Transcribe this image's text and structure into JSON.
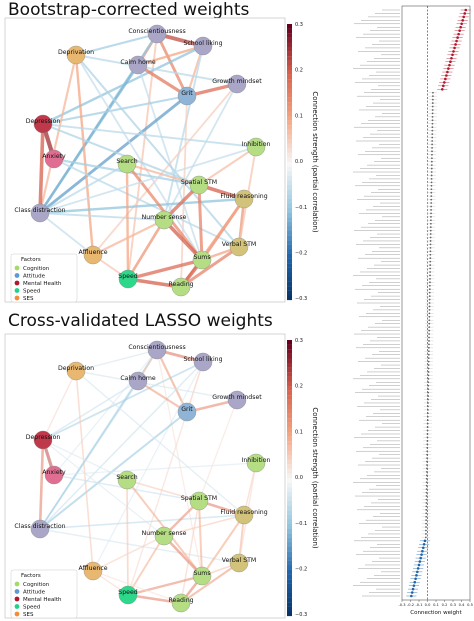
{
  "titles": {
    "top": "Bootstrap-corrected weights",
    "bottom": "Cross-validated LASSO weights"
  },
  "colorbar": {
    "label": "Connection strength (partial correlation)",
    "ticks": [
      "0.3",
      "0.2",
      "0.1",
      "0.0",
      "−0.1",
      "−0.2",
      "−0.3"
    ]
  },
  "legend": {
    "title": "Factors",
    "items": [
      {
        "name": "Cognition",
        "color": "#a6d96a"
      },
      {
        "name": "Attitude",
        "color": "#5b9bd5"
      },
      {
        "name": "Mental Health",
        "color": "#b2182b"
      },
      {
        "name": "Speed",
        "color": "#1fd38a"
      },
      {
        "name": "SES",
        "color": "#f28d35"
      }
    ]
  },
  "node_colors": {
    "Cognition": "#b5dd84",
    "Attitude": "#8fb4d6",
    "Attitude2": "#a9a6c7",
    "Mental Health": "#c0394b",
    "Anxiety": "#e06e92",
    "Speed": "#2ed88a",
    "SES": "#e9b870",
    "Verbal": "#d2c27a"
  },
  "nodes": [
    {
      "id": "Conscientiousness",
      "group": "Attitude2"
    },
    {
      "id": "School liking",
      "group": "Attitude2"
    },
    {
      "id": "Calm home",
      "group": "Attitude2"
    },
    {
      "id": "Deprivation",
      "group": "SES"
    },
    {
      "id": "Growth mindset",
      "group": "Attitude2"
    },
    {
      "id": "Grit",
      "group": "Attitude"
    },
    {
      "id": "Depression",
      "group": "Mental Health"
    },
    {
      "id": "Inhibition",
      "group": "Cognition"
    },
    {
      "id": "Anxiety",
      "group": "Anxiety"
    },
    {
      "id": "Search",
      "group": "Cognition"
    },
    {
      "id": "Spatial STM",
      "group": "Cognition"
    },
    {
      "id": "Fluid reasoning",
      "group": "Verbal"
    },
    {
      "id": "Class distraction",
      "group": "Attitude2"
    },
    {
      "id": "Number sense",
      "group": "Cognition"
    },
    {
      "id": "Verbal STM",
      "group": "Verbal"
    },
    {
      "id": "Affluence",
      "group": "SES"
    },
    {
      "id": "Sums",
      "group": "Cognition"
    },
    {
      "id": "Speed",
      "group": "Speed"
    },
    {
      "id": "Reading",
      "group": "Cognition"
    }
  ],
  "edges_top": [
    {
      "a": "Conscientiousness",
      "b": "School liking",
      "w": 0.22
    },
    {
      "a": "Conscientiousness",
      "b": "Calm home",
      "w": 0.12
    },
    {
      "a": "Conscientiousness",
      "b": "Grit",
      "w": 0.14
    },
    {
      "a": "Conscientiousness",
      "b": "Deprivation",
      "w": -0.08
    },
    {
      "a": "Conscientiousness",
      "b": "Class distraction",
      "w": -0.1
    },
    {
      "a": "Conscientiousness",
      "b": "Speed",
      "w": 0.06
    },
    {
      "a": "School liking",
      "b": "Grit",
      "w": 0.08
    },
    {
      "a": "School liking",
      "b": "Calm home",
      "w": 0.1
    },
    {
      "a": "School liking",
      "b": "Depression",
      "w": -0.1
    },
    {
      "a": "School liking",
      "b": "Number sense",
      "w": -0.06
    },
    {
      "a": "Calm home",
      "b": "Grit",
      "w": 0.16
    },
    {
      "a": "Calm home",
      "b": "Class distraction",
      "w": -0.12
    },
    {
      "a": "Calm home",
      "b": "Sums",
      "w": -0.05
    },
    {
      "a": "Grit",
      "b": "Growth mindset",
      "w": 0.18
    },
    {
      "a": "Grit",
      "b": "Depression",
      "w": -0.08
    },
    {
      "a": "Grit",
      "b": "Class distraction",
      "w": -0.14
    },
    {
      "a": "Grit",
      "b": "Reading",
      "w": 0.05
    },
    {
      "a": "Growth mindset",
      "b": "Deprivation",
      "w": -0.06
    },
    {
      "a": "Growth mindset",
      "b": "Affluence",
      "w": 0.05
    },
    {
      "a": "Growth mindset",
      "b": "Number sense",
      "w": -0.05
    },
    {
      "a": "Deprivation",
      "b": "Affluence",
      "w": 0.1
    },
    {
      "a": "Deprivation",
      "b": "Class distraction",
      "w": 0.08
    },
    {
      "a": "Deprivation",
      "b": "Verbal STM",
      "w": -0.07
    },
    {
      "a": "Deprivation",
      "b": "Sums",
      "w": -0.05
    },
    {
      "a": "Depression",
      "b": "Anxiety",
      "w": 0.25
    },
    {
      "a": "Depression",
      "b": "Class distraction",
      "w": 0.2
    },
    {
      "a": "Depression",
      "b": "Inhibition",
      "w": -0.06
    },
    {
      "a": "Depression",
      "b": "Spatial STM",
      "w": -0.07
    },
    {
      "a": "Anxiety",
      "b": "Spatial STM",
      "w": -0.08
    },
    {
      "a": "Anxiety",
      "b": "Verbal STM",
      "w": -0.06
    },
    {
      "a": "Class distraction",
      "b": "Fluid reasoning",
      "w": -0.1
    },
    {
      "a": "Class distraction",
      "b": "Number sense",
      "w": -0.06
    },
    {
      "a": "Search",
      "b": "Sums",
      "w": 0.14
    },
    {
      "a": "Search",
      "b": "Spatial STM",
      "w": 0.08
    },
    {
      "a": "Search",
      "b": "Speed",
      "w": 0.1
    },
    {
      "a": "Search",
      "b": "Class distraction",
      "w": -0.06
    },
    {
      "a": "Spatial STM",
      "b": "Fluid reasoning",
      "w": 0.2
    },
    {
      "a": "Spatial STM",
      "b": "Number sense",
      "w": 0.18
    },
    {
      "a": "Spatial STM",
      "b": "Sums",
      "w": 0.15
    },
    {
      "a": "Spatial STM",
      "b": "Inhibition",
      "w": 0.07
    },
    {
      "a": "Fluid reasoning",
      "b": "Verbal STM",
      "w": 0.12
    },
    {
      "a": "Fluid reasoning",
      "b": "Sums",
      "w": 0.14
    },
    {
      "a": "Fluid reasoning",
      "b": "Reading",
      "w": 0.1
    },
    {
      "a": "Number sense",
      "b": "Sums",
      "w": 0.2
    },
    {
      "a": "Number sense",
      "b": "Speed",
      "w": 0.12
    },
    {
      "a": "Number sense",
      "b": "Affluence",
      "w": 0.08
    },
    {
      "a": "Verbal STM",
      "b": "Reading",
      "w": 0.15
    },
    {
      "a": "Verbal STM",
      "b": "Sums",
      "w": 0.1
    },
    {
      "a": "Sums",
      "b": "Reading",
      "w": 0.2
    },
    {
      "a": "Sums",
      "b": "Speed",
      "w": 0.18
    },
    {
      "a": "Speed",
      "b": "Reading",
      "w": 0.2
    },
    {
      "a": "Speed",
      "b": "Affluence",
      "w": 0.06
    },
    {
      "a": "Affluence",
      "b": "Class distraction",
      "w": -0.05
    },
    {
      "a": "Inhibition",
      "b": "Verbal STM",
      "w": 0.06
    },
    {
      "a": "Inhibition",
      "b": "Class distraction",
      "w": -0.05
    }
  ],
  "edges_bottom": [
    {
      "a": "Conscientiousness",
      "b": "School liking",
      "w": 0.18
    },
    {
      "a": "Conscientiousness",
      "b": "Calm home",
      "w": 0.1
    },
    {
      "a": "Conscientiousness",
      "b": "Grit",
      "w": 0.12
    },
    {
      "a": "Conscientiousness",
      "b": "Deprivation",
      "w": -0.04
    },
    {
      "a": "Conscientiousness",
      "b": "Class distraction",
      "w": -0.06
    },
    {
      "a": "Conscientiousness",
      "b": "Anxiety",
      "w": -0.03
    },
    {
      "a": "Conscientiousness",
      "b": "Sums",
      "w": 0.03
    },
    {
      "a": "School liking",
      "b": "Grit",
      "w": 0.06
    },
    {
      "a": "School liking",
      "b": "Depression",
      "w": -0.08
    },
    {
      "a": "School liking",
      "b": "Class distraction",
      "w": -0.05
    },
    {
      "a": "School liking",
      "b": "Affluence",
      "w": -0.03
    },
    {
      "a": "Calm home",
      "b": "Grit",
      "w": 0.12
    },
    {
      "a": "Calm home",
      "b": "Class distraction",
      "w": -0.09
    },
    {
      "a": "Calm home",
      "b": "Depression",
      "w": -0.05
    },
    {
      "a": "Grit",
      "b": "Growth mindset",
      "w": 0.15
    },
    {
      "a": "Grit",
      "b": "Class distraction",
      "w": -0.1
    },
    {
      "a": "Grit",
      "b": "Speed",
      "w": 0.04
    },
    {
      "a": "Growth mindset",
      "b": "Deprivation",
      "w": -0.04
    },
    {
      "a": "Growth mindset",
      "b": "Spatial STM",
      "w": 0.03
    },
    {
      "a": "Deprivation",
      "b": "Affluence",
      "w": 0.06
    },
    {
      "a": "Deprivation",
      "b": "Depression",
      "w": 0.04
    },
    {
      "a": "Deprivation",
      "b": "Fluid reasoning",
      "w": -0.04
    },
    {
      "a": "Depression",
      "b": "Anxiety",
      "w": 0.22
    },
    {
      "a": "Depression",
      "b": "Class distraction",
      "w": 0.16
    },
    {
      "a": "Depression",
      "b": "Search",
      "w": -0.03
    },
    {
      "a": "Anxiety",
      "b": "Spatial STM",
      "w": -0.05
    },
    {
      "a": "Anxiety",
      "b": "Inhibition",
      "w": -0.03
    },
    {
      "a": "Class distraction",
      "b": "Fluid reasoning",
      "w": -0.06
    },
    {
      "a": "Class distraction",
      "b": "Verbal STM",
      "w": -0.04
    },
    {
      "a": "Search",
      "b": "Sums",
      "w": 0.1
    },
    {
      "a": "Search",
      "b": "Spatial STM",
      "w": 0.06
    },
    {
      "a": "Search",
      "b": "Speed",
      "w": 0.07
    },
    {
      "a": "Spatial STM",
      "b": "Fluid reasoning",
      "w": 0.16
    },
    {
      "a": "Spatial STM",
      "b": "Number sense",
      "w": 0.14
    },
    {
      "a": "Spatial STM",
      "b": "Sums",
      "w": 0.1
    },
    {
      "a": "Spatial STM",
      "b": "Reading",
      "w": 0.05
    },
    {
      "a": "Fluid reasoning",
      "b": "Verbal STM",
      "w": 0.09
    },
    {
      "a": "Fluid reasoning",
      "b": "Sums",
      "w": 0.1
    },
    {
      "a": "Fluid reasoning",
      "b": "Number sense",
      "w": 0.06
    },
    {
      "a": "Number sense",
      "b": "Sums",
      "w": 0.16
    },
    {
      "a": "Number sense",
      "b": "Speed",
      "w": 0.09
    },
    {
      "a": "Number sense",
      "b": "Affluence",
      "w": 0.05
    },
    {
      "a": "Verbal STM",
      "b": "Reading",
      "w": 0.12
    },
    {
      "a": "Verbal STM",
      "b": "Sums",
      "w": 0.07
    },
    {
      "a": "Sums",
      "b": "Reading",
      "w": 0.16
    },
    {
      "a": "Sums",
      "b": "Speed",
      "w": 0.14
    },
    {
      "a": "Speed",
      "b": "Reading",
      "w": 0.16
    },
    {
      "a": "Speed",
      "b": "Affluence",
      "w": 0.04
    },
    {
      "a": "Inhibition",
      "b": "Verbal STM",
      "w": 0.04
    },
    {
      "a": "Inhibition",
      "b": "Fluid reasoning",
      "w": 0.05
    },
    {
      "a": "Affluence",
      "b": "Reading",
      "w": 0.03
    },
    {
      "a": "Depression",
      "b": "Number sense",
      "w": -0.03
    }
  ],
  "chart_data": [
    {
      "type": "network",
      "title": "Bootstrap-corrected weights",
      "colorbar_label": "Connection strength (partial correlation)",
      "colorbar_range": [
        -0.3,
        0.3
      ]
    },
    {
      "type": "network",
      "title": "Cross-validated LASSO weights",
      "colorbar_label": "Connection strength (partial correlation)",
      "colorbar_range": [
        -0.3,
        0.3
      ]
    },
    {
      "type": "scatter",
      "xlabel": "Connection weight",
      "xlim": [
        -0.3,
        0.5
      ],
      "x_ticks": [
        "-0.3",
        "-0.2",
        "-0.1",
        "0.0",
        "0.1",
        "0.2",
        "0.3",
        "0.4",
        "0.5"
      ],
      "n_points": 171,
      "labels_sample": [
        "Depression · Anxiety",
        "Calm home · School liking",
        "Grit · Growth mindset",
        "Depression · Class distraction",
        "Verbal STM · Reading",
        "Number sense · Sums",
        "Spatial STM · Fluid reasoning",
        "Sums · Speed",
        "Speed · Reading",
        "Search · Sums"
      ],
      "sorted_weights_summary": {
        "max": 0.45,
        "min": -0.2,
        "positive_strong_count": 24,
        "negative_strong_count": 17
      }
    }
  ]
}
